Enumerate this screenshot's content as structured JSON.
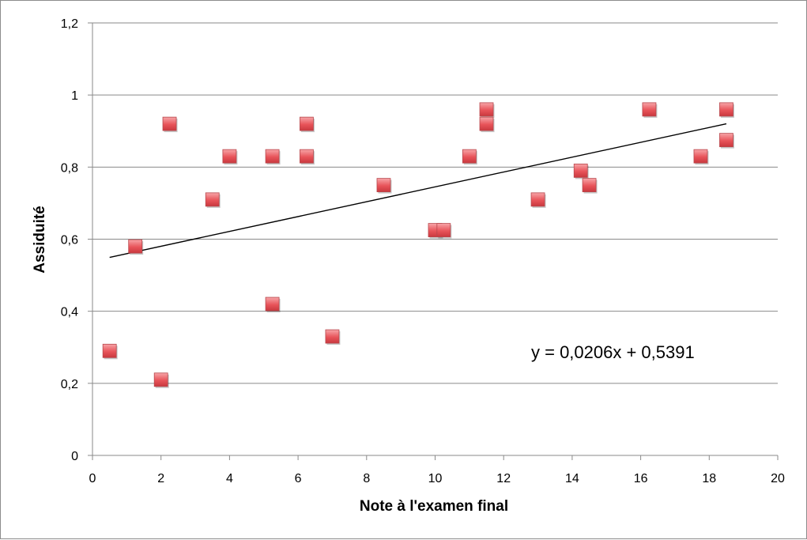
{
  "chart_data": {
    "type": "scatter",
    "title": "",
    "xlabel": "Note à l'examen final",
    "ylabel": "Assiduité",
    "xlim": [
      0,
      20
    ],
    "ylim": [
      0,
      1.2
    ],
    "x_ticks": [
      0,
      2,
      4,
      6,
      8,
      10,
      12,
      14,
      16,
      18,
      20
    ],
    "x_tick_labels": [
      "0",
      "2",
      "4",
      "6",
      "8",
      "10",
      "12",
      "14",
      "16",
      "18",
      "20"
    ],
    "y_ticks": [
      0,
      0.2,
      0.4,
      0.6,
      0.8,
      1,
      1.2
    ],
    "y_tick_labels": [
      "0",
      "0,2",
      "0,4",
      "0,6",
      "0,8",
      "1",
      "1,2"
    ],
    "grid": "horizontal",
    "legend": "none",
    "marker": "square",
    "marker_color": "#e8545a",
    "points": [
      {
        "x": 0.5,
        "y": 0.29
      },
      {
        "x": 1.25,
        "y": 0.58
      },
      {
        "x": 2,
        "y": 0.21
      },
      {
        "x": 2.25,
        "y": 0.92
      },
      {
        "x": 3.5,
        "y": 0.71
      },
      {
        "x": 4,
        "y": 0.83
      },
      {
        "x": 5.25,
        "y": 0.83
      },
      {
        "x": 5.25,
        "y": 0.42
      },
      {
        "x": 6.25,
        "y": 0.92
      },
      {
        "x": 6.25,
        "y": 0.83
      },
      {
        "x": 7,
        "y": 0.33
      },
      {
        "x": 8.5,
        "y": 0.75
      },
      {
        "x": 10,
        "y": 0.625
      },
      {
        "x": 10.25,
        "y": 0.625
      },
      {
        "x": 11,
        "y": 0.83
      },
      {
        "x": 11.5,
        "y": 0.96
      },
      {
        "x": 11.5,
        "y": 0.92
      },
      {
        "x": 13,
        "y": 0.71
      },
      {
        "x": 14.25,
        "y": 0.79
      },
      {
        "x": 14.5,
        "y": 0.75
      },
      {
        "x": 16.25,
        "y": 0.96
      },
      {
        "x": 17.75,
        "y": 0.83
      },
      {
        "x": 18.5,
        "y": 0.96
      },
      {
        "x": 18.5,
        "y": 0.875
      }
    ],
    "trendline": {
      "slope": 0.0206,
      "intercept": 0.5391,
      "x_range": [
        0.5,
        18.5
      ],
      "equation_label": "y = 0,0206x + 0,5391"
    }
  }
}
